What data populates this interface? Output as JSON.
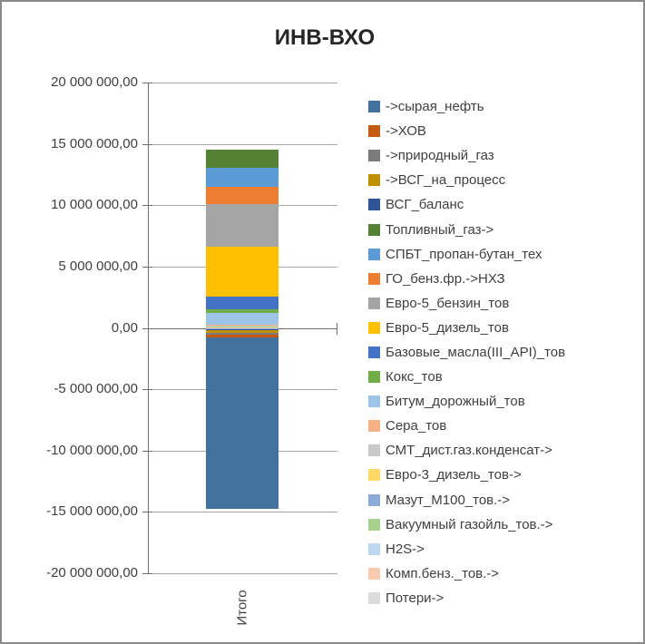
{
  "window": {
    "background": "#FFFFFF",
    "border_color": "#8A8A8A"
  },
  "chart_data": {
    "type": "bar",
    "stacked": true,
    "title": "ИНВ-ВХО",
    "categories": [
      "Итого"
    ],
    "xlabel": "",
    "ylabel": "",
    "ylim": [
      -20000000,
      20000000
    ],
    "ytick_step": 5000000,
    "grid": true,
    "legend_position": "right",
    "yticks": [
      {
        "value": 20000000,
        "label": "20 000 000,00"
      },
      {
        "value": 15000000,
        "label": "15 000 000,00"
      },
      {
        "value": 10000000,
        "label": "10 000 000,00"
      },
      {
        "value": 5000000,
        "label": "5 000 000,00"
      },
      {
        "value": 0,
        "label": "0,00"
      },
      {
        "value": -5000000,
        "label": "-5 000 000,00"
      },
      {
        "value": -10000000,
        "label": "-10 000 000,00"
      },
      {
        "value": -15000000,
        "label": "-15 000 000,00"
      },
      {
        "value": -20000000,
        "label": "-20 000 000,00"
      }
    ],
    "series": [
      {
        "name": "->сырая_нефть",
        "color": "#41719C",
        "values": [
          -13950000
        ]
      },
      {
        "name": "->ХОВ",
        "color": "#C55A11",
        "values": [
          -200000
        ]
      },
      {
        "name": "->природный_газ",
        "color": "#7C7C7C",
        "values": [
          -185000
        ]
      },
      {
        "name": "->ВСГ_на_процесс",
        "color": "#BF9000",
        "values": [
          -185000
        ]
      },
      {
        "name": "ВСГ_баланс",
        "color": "#2F5597",
        "values": [
          -110000
        ]
      },
      {
        "name": "Топливный_газ->",
        "color": "#548235",
        "values": [
          1440000
        ]
      },
      {
        "name": "СПБТ_пропан-бутан_тех",
        "color": "#5B9BD5",
        "values": [
          1550000
        ]
      },
      {
        "name": "ГО_бенз.фр.->НХЗ",
        "color": "#ED7D31",
        "values": [
          1440000
        ]
      },
      {
        "name": "Евро-5_бензин_тов",
        "color": "#A5A5A5",
        "values": [
          3470000
        ]
      },
      {
        "name": "Евро-5_дизель_тов",
        "color": "#FFC000",
        "values": [
          4060000
        ]
      },
      {
        "name": "Базовые_масла(III_API)_тов",
        "color": "#4472C4",
        "values": [
          1030000
        ]
      },
      {
        "name": "Кокс_тов",
        "color": "#70AD47",
        "values": [
          300000
        ]
      },
      {
        "name": "Битум_дорожный_тов",
        "color": "#9DC3E6",
        "values": [
          960000
        ]
      },
      {
        "name": "Сера_тов",
        "color": "#F4B183",
        "values": [
          50000
        ]
      },
      {
        "name": "СМТ_дист.газ.конденсат->",
        "color": "#C9C9C9",
        "values": [
          40000
        ]
      },
      {
        "name": "Евро-3_дизель_тов->",
        "color": "#FFD966",
        "values": [
          40000
        ]
      },
      {
        "name": "Мазут_М100_тов.->",
        "color": "#8EAADB",
        "values": [
          -110000
        ]
      },
      {
        "name": "Вакуумный газойль_тов.->",
        "color": "#A9D18E",
        "values": [
          30000
        ]
      },
      {
        "name": "H2S->",
        "color": "#BDD7EE",
        "values": [
          60000
        ]
      },
      {
        "name": "Комп.бенз._тов.->",
        "color": "#F8CBAD",
        "values": [
          20000
        ]
      },
      {
        "name": "Потери->",
        "color": "#DBDBDB",
        "values": [
          20000
        ]
      }
    ],
    "colors": {
      "gridline": "#A6A6A6",
      "axis": "#6E6E6E",
      "text": "#3F3F3F",
      "title_text": "#262626"
    }
  }
}
